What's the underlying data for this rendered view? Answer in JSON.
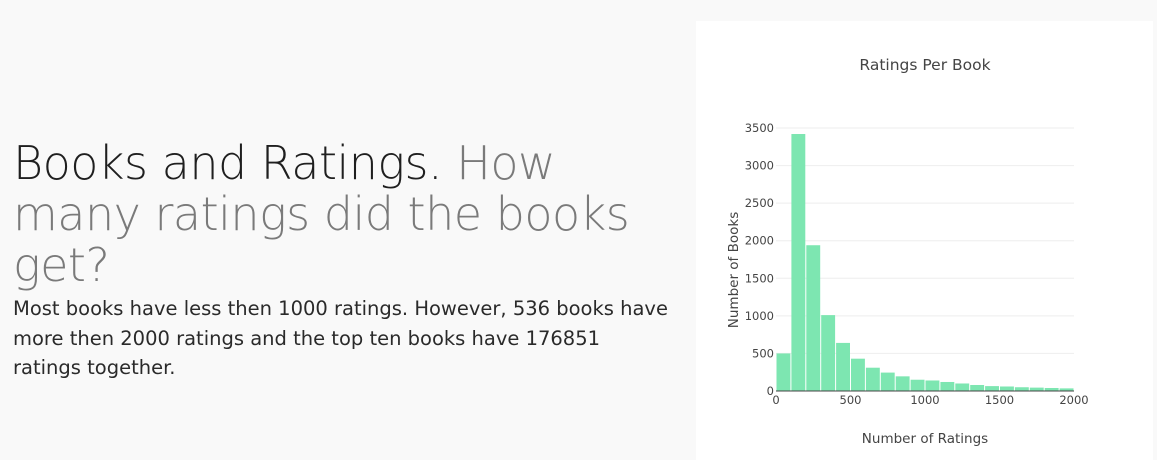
{
  "intro": {
    "heading_strong": "Books and Ratings.",
    "heading_muted": "How many ratings did the books get?",
    "body": "Most books have less then 1000 ratings. However, 536 books have more then 2000 ratings and the top ten books have 176851 ratings together."
  },
  "colors": {
    "bar": "#7de6b1",
    "grid": "#eeeeee",
    "axis": "#444444"
  },
  "chart_data": {
    "type": "bar",
    "title": "Ratings Per Book",
    "xlabel": "Number of Ratings",
    "ylabel": "Number of Books",
    "xlim": [
      0,
      2000
    ],
    "ylim": [
      0,
      3500
    ],
    "xticks": [
      0,
      500,
      1000,
      1500,
      2000
    ],
    "yticks": [
      0,
      500,
      1000,
      1500,
      2000,
      2500,
      3000,
      3500
    ],
    "grid": true,
    "bin_width": 100,
    "bin_starts": [
      0,
      100,
      200,
      300,
      400,
      500,
      600,
      700,
      800,
      900,
      1000,
      1100,
      1200,
      1300,
      1400,
      1500,
      1600,
      1700,
      1800,
      1900
    ],
    "values": [
      500,
      3420,
      1940,
      1010,
      640,
      430,
      310,
      245,
      195,
      150,
      140,
      120,
      100,
      80,
      65,
      60,
      50,
      45,
      40,
      35
    ]
  }
}
